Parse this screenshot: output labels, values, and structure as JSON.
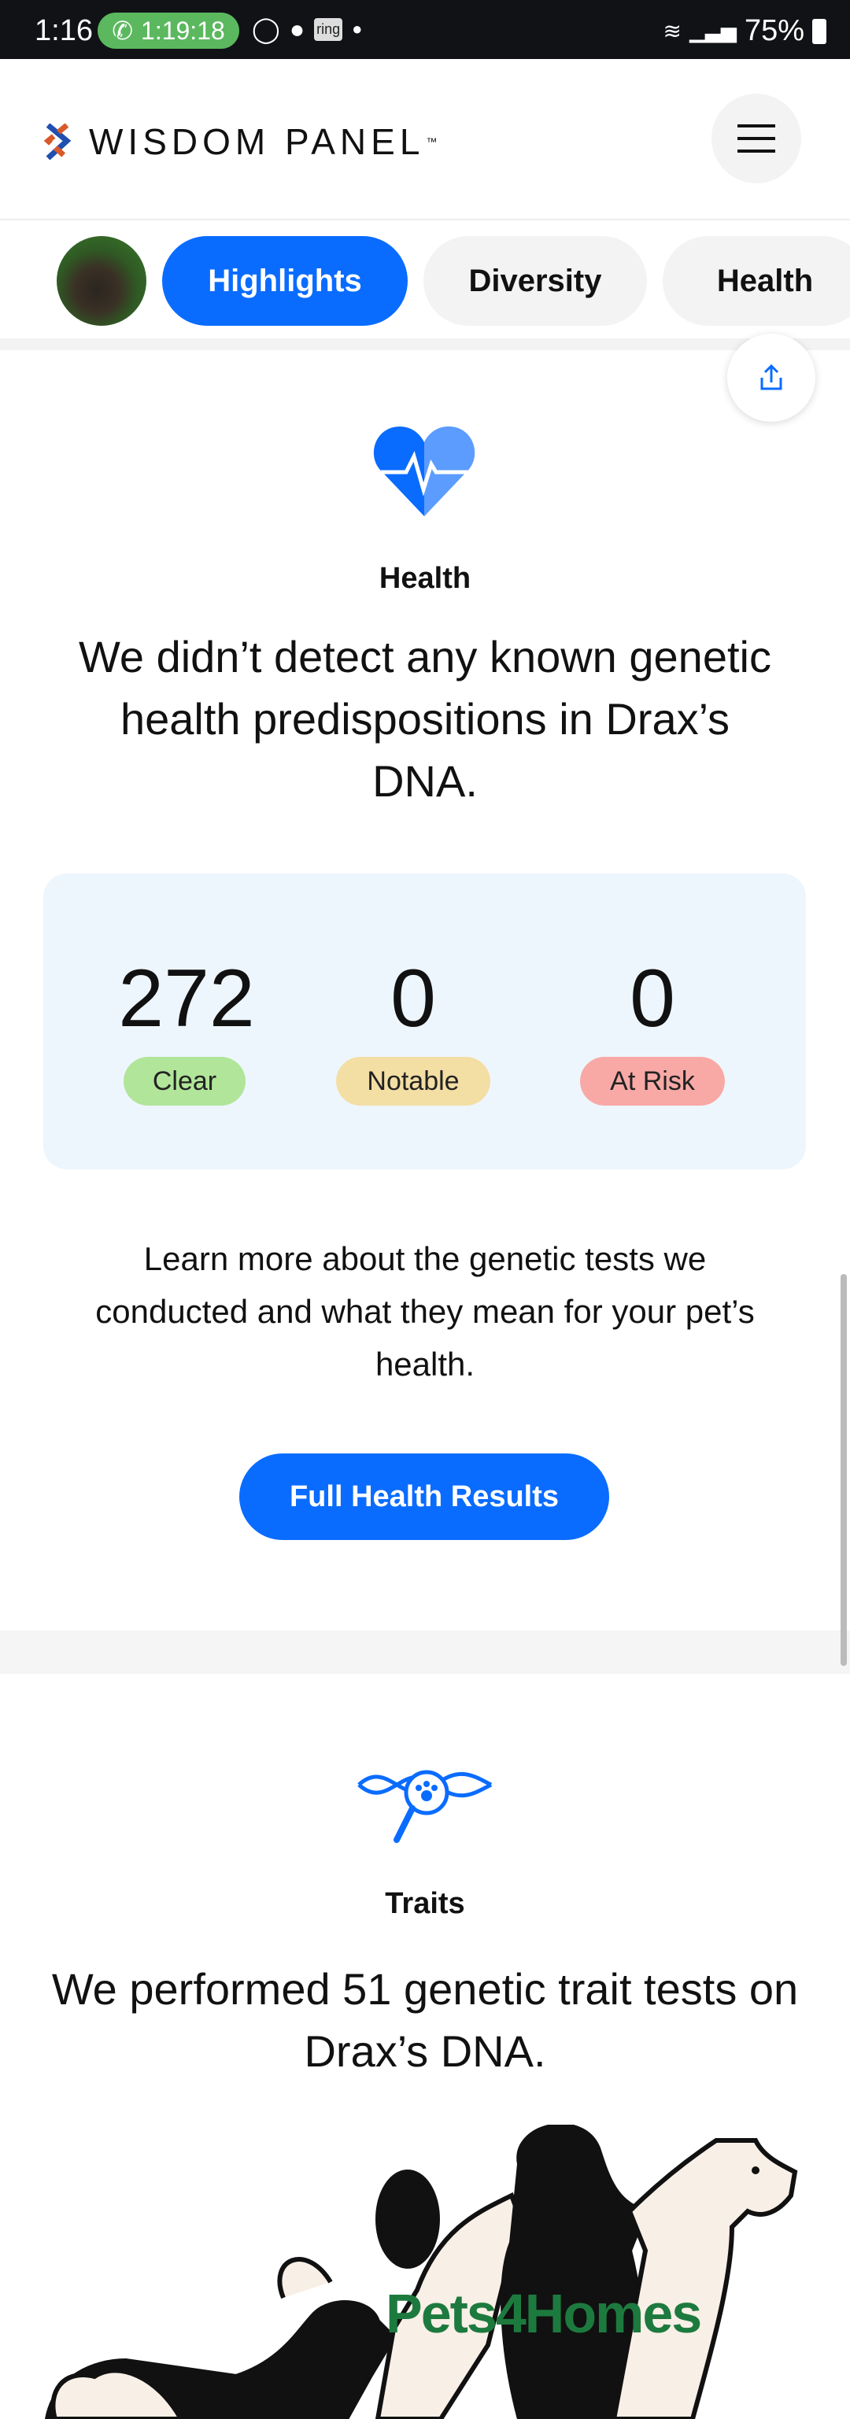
{
  "status_bar": {
    "time": "1:16",
    "call_timer": "1:19:18",
    "ring_label": "ring",
    "battery": "75%"
  },
  "header": {
    "brand": "WISDOM PANEL",
    "trademark": "™"
  },
  "tabs": [
    {
      "label": "Highlights",
      "active": true
    },
    {
      "label": "Diversity"
    },
    {
      "label": "Health"
    }
  ],
  "health": {
    "label": "Health",
    "headline": "We didn’t detect any known genetic health predispositions in Drax’s DNA.",
    "stats": [
      {
        "value": "272",
        "label": "Clear",
        "color": "#b1e59a"
      },
      {
        "value": "0",
        "label": "Notable",
        "color": "#f3dea4"
      },
      {
        "value": "0",
        "label": "At Risk",
        "color": "#f8a9a6"
      }
    ],
    "description": "Learn more about the genetic tests we conducted and what they mean for your pet’s health.",
    "button": "Full Health Results"
  },
  "traits": {
    "label": "Traits",
    "headline": "We performed 51 genetic trait tests on Drax’s DNA."
  },
  "watermark": "Pets4Homes",
  "colors": {
    "accent": "#0a6cff",
    "card_bg": "#eef6fd"
  }
}
